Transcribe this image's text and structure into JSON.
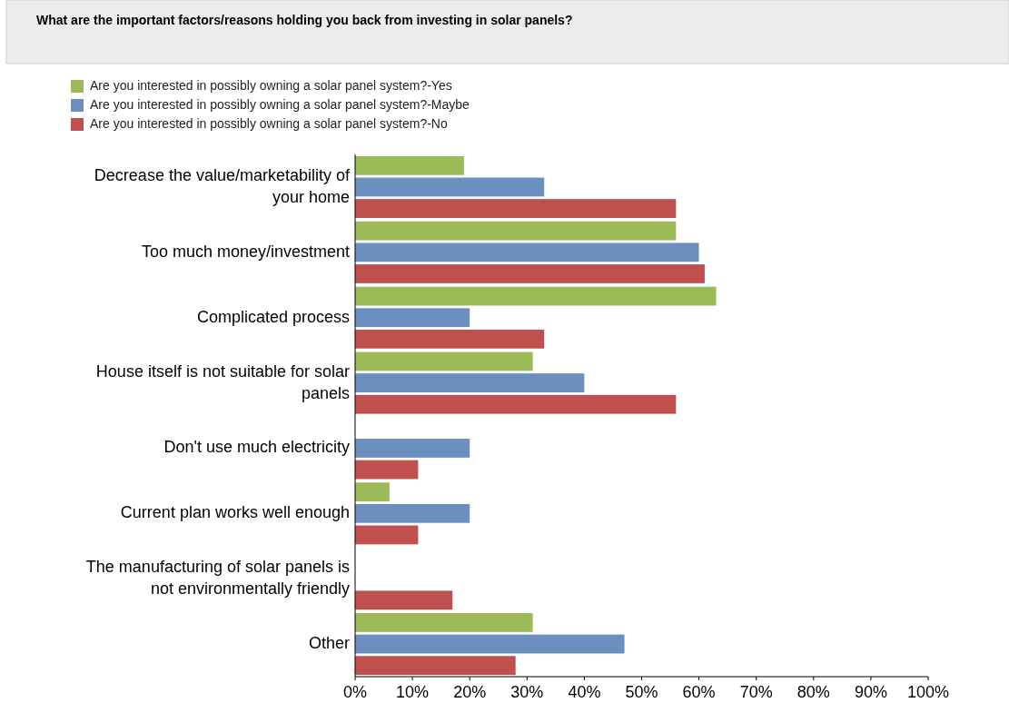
{
  "chart_data": {
    "type": "bar",
    "orientation": "horizontal",
    "title": "What are the important factors/reasons holding you back from investing in solar panels?",
    "categories": [
      "Decrease the value/marketability of your home",
      "Too much money/investment",
      "Complicated process",
      "House itself is not suitable for solar panels",
      "Don't use much electricity",
      "Current plan works well enough",
      "The manufacturing of solar panels is not environmentally friendly",
      "Other"
    ],
    "series": [
      {
        "name": "Are you interested in possibly owning a solar panel system?-Yes",
        "color": "#9bbb59",
        "values": [
          19,
          56,
          63,
          31,
          0,
          6,
          0,
          31
        ]
      },
      {
        "name": "Are you interested in possibly owning a solar panel system?-Maybe",
        "color": "#6b8fbf",
        "values": [
          33,
          60,
          20,
          40,
          20,
          20,
          0,
          47
        ]
      },
      {
        "name": "Are you interested in possibly owning a solar panel system?-No",
        "color": "#c0504d",
        "values": [
          56,
          61,
          33,
          56,
          11,
          11,
          17,
          28
        ]
      }
    ],
    "xlim": [
      0,
      100
    ],
    "xticks": [
      {
        "value": 0,
        "label": "0%"
      },
      {
        "value": 10,
        "label": "10%"
      },
      {
        "value": 20,
        "label": "20%"
      },
      {
        "value": 30,
        "label": "30%"
      },
      {
        "value": 40,
        "label": "40%"
      },
      {
        "value": 50,
        "label": "50%"
      },
      {
        "value": 60,
        "label": "60%"
      },
      {
        "value": 70,
        "label": "70%"
      },
      {
        "value": 80,
        "label": "80%"
      },
      {
        "value": 90,
        "label": "90%"
      },
      {
        "value": 100,
        "label": "100%"
      }
    ],
    "grid": false,
    "legend": "top left"
  }
}
